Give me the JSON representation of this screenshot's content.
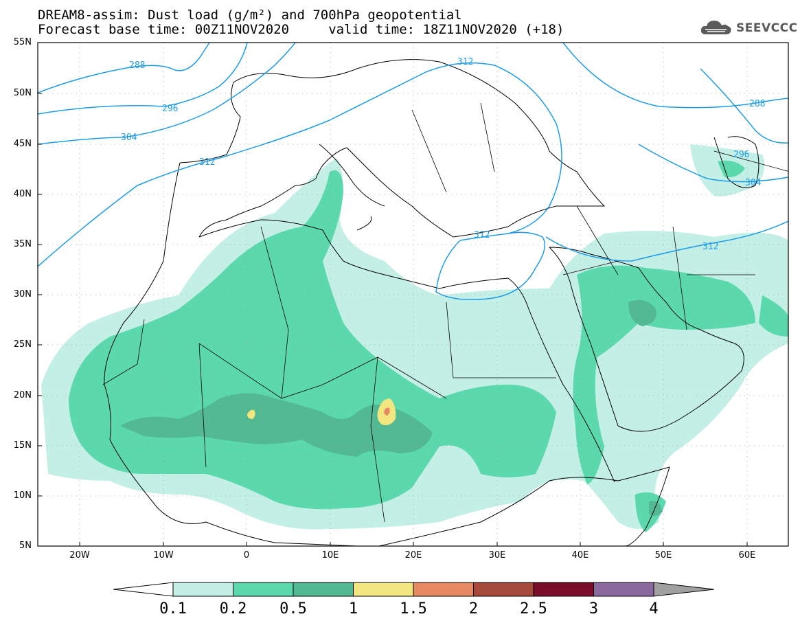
{
  "title": {
    "line1": "DREAM8-assim: Dust load (g/m²) and 700hPa geopotential",
    "line2": "Forecast base time: 00Z11NOV2020     valid time: 18Z11NOV2020 (+18)"
  },
  "logo": {
    "text": "SEEVCCC",
    "icon": "cloud-icon",
    "color": "#5a5a5a"
  },
  "map": {
    "lon_range": [
      -25,
      65
    ],
    "lat_range": [
      5,
      55
    ],
    "lat_labels": [
      "55N",
      "50N",
      "45N",
      "40N",
      "35N",
      "30N",
      "25N",
      "20N",
      "15N",
      "10N",
      "5N"
    ],
    "lon_labels": [
      "20W",
      "10W",
      "0",
      "10E",
      "20E",
      "30E",
      "40E",
      "50E",
      "60E"
    ],
    "grid": "dotted",
    "contour_labels": [
      "288",
      "296",
      "304",
      "312",
      "312",
      "312",
      "312",
      "288",
      "296",
      "304"
    ],
    "contour_color": "#1e9be6"
  },
  "colorbar": {
    "levels": [
      "0.1",
      "0.2",
      "0.5",
      "1",
      "1.5",
      "2",
      "2.5",
      "3",
      "4"
    ],
    "colors": [
      "#c4efe6",
      "#5bd9ac",
      "#52b993",
      "#f2e680",
      "#e68a64",
      "#a64a3c",
      "#7a0d2a",
      "#8a6a9e",
      "#a0a0a0"
    ]
  }
}
